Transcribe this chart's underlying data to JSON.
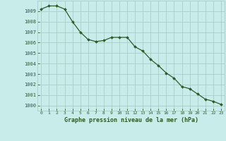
{
  "x": [
    0,
    1,
    2,
    3,
    4,
    5,
    6,
    7,
    8,
    9,
    10,
    11,
    12,
    13,
    14,
    15,
    16,
    17,
    18,
    19,
    20,
    21,
    22,
    23
  ],
  "y": [
    1009.2,
    1009.5,
    1009.5,
    1009.2,
    1008.0,
    1007.0,
    1006.3,
    1006.1,
    1006.2,
    1006.5,
    1006.5,
    1006.5,
    1005.6,
    1005.2,
    1004.4,
    1003.8,
    1003.1,
    1002.6,
    1001.8,
    1001.6,
    1001.1,
    1000.6,
    1000.4,
    1000.1
  ],
  "line_color": "#2d5a27",
  "marker_color": "#2d5a27",
  "bg_color": "#c8ecea",
  "grid_color": "#a8ccc8",
  "xlabel": "Graphe pression niveau de la mer (hPa)",
  "xlabel_color": "#2d5a27",
  "tick_color": "#2d5a27",
  "ylim": [
    999.5,
    1010.0
  ],
  "xlim": [
    -0.5,
    23.5
  ],
  "yticks": [
    1000,
    1001,
    1002,
    1003,
    1004,
    1005,
    1006,
    1007,
    1008,
    1009
  ],
  "xticks": [
    0,
    1,
    2,
    3,
    4,
    5,
    6,
    7,
    8,
    9,
    10,
    11,
    12,
    13,
    14,
    15,
    16,
    17,
    18,
    19,
    20,
    21,
    22,
    23
  ],
  "xtick_labels": [
    "0",
    "1",
    "2",
    "3",
    "4",
    "5",
    "6",
    "7",
    "8",
    "9",
    "10",
    "11",
    "12",
    "13",
    "14",
    "15",
    "16",
    "17",
    "18",
    "19",
    "20",
    "21",
    "22",
    "23"
  ]
}
